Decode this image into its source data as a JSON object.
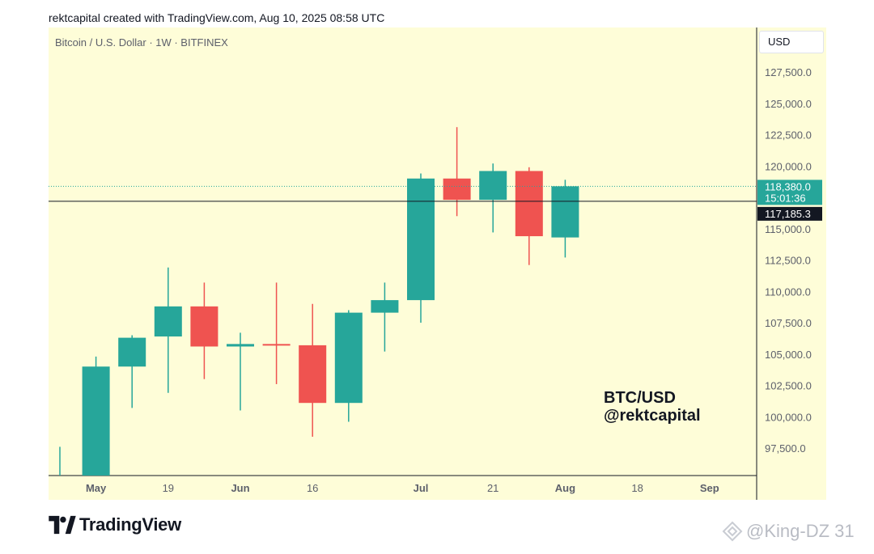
{
  "caption": "rektcapital created with TradingView.com, Aug 10, 2025 08:58 UTC",
  "symbol_line": "Bitcoin / U.S. Dollar · 1W · BITFINEX",
  "currency": "USD",
  "annotation": {
    "line1": "BTC/USD",
    "line2": "@rektcapital"
  },
  "branding": {
    "name": "TradingView"
  },
  "watermark": "@King-DZ 31",
  "colors": {
    "background": "#fefdd8",
    "up": "#26a69a",
    "down": "#ef5350",
    "current_price_bg": "#26a69a",
    "horizontal_line_label_bg": "#131722"
  },
  "chart_data": {
    "type": "candlestick",
    "interval": "1W",
    "ylim": [
      95000,
      130000
    ],
    "y_ticks": [
      97500,
      100000,
      102500,
      105000,
      107500,
      110000,
      112500,
      115000,
      117500,
      120000,
      122500,
      125000,
      127500
    ],
    "y_tick_labels": [
      "97,500.0",
      "100,000.0",
      "102,500.0",
      "105,000.0",
      "107,500.0",
      "",
      "112,500.0",
      "115,000.0",
      "",
      "120,000.0",
      "122,500.0",
      "125,000.0",
      "127,500.0"
    ],
    "y_tick_labels_full": [
      "97,500.0",
      "100,000.0",
      "102,500.0",
      "105,000.0",
      "107,500.0",
      "110,000.0",
      "112,500.0",
      "115,000.0",
      "",
      "120,000.0",
      "122,500.0",
      "125,000.0",
      "127,500.0"
    ],
    "x_labels": [
      {
        "label": "May",
        "bold": true,
        "slot": 1.0
      },
      {
        "label": "19",
        "bold": false,
        "slot": 3.0
      },
      {
        "label": "Jun",
        "bold": true,
        "slot": 5.0
      },
      {
        "label": "16",
        "bold": false,
        "slot": 7.0
      },
      {
        "label": "Jul",
        "bold": true,
        "slot": 10.0
      },
      {
        "label": "21",
        "bold": false,
        "slot": 12.0
      },
      {
        "label": "Aug",
        "bold": true,
        "slot": 14.0
      },
      {
        "label": "18",
        "bold": false,
        "slot": 16.0
      },
      {
        "label": "Sep",
        "bold": true,
        "slot": 18.0
      }
    ],
    "candles": [
      {
        "open": 95000,
        "high": 97600,
        "low": 95000,
        "close": 95000,
        "partial": true
      },
      {
        "open": 95000,
        "high": 104800,
        "low": 95000,
        "close": 104000
      },
      {
        "open": 104000,
        "high": 106500,
        "low": 100700,
        "close": 106300
      },
      {
        "open": 106400,
        "high": 111900,
        "low": 101900,
        "close": 108800
      },
      {
        "open": 108800,
        "high": 110700,
        "low": 103000,
        "close": 105600
      },
      {
        "open": 105600,
        "high": 106700,
        "low": 100500,
        "close": 105800
      },
      {
        "open": 105800,
        "high": 110700,
        "low": 102600,
        "close": 105700
      },
      {
        "open": 105700,
        "high": 109000,
        "low": 98400,
        "close": 101100
      },
      {
        "open": 101100,
        "high": 108500,
        "low": 99600,
        "close": 108300
      },
      {
        "open": 108300,
        "high": 110700,
        "low": 105200,
        "close": 109300
      },
      {
        "open": 109300,
        "high": 119400,
        "low": 107500,
        "close": 119000
      },
      {
        "open": 119000,
        "high": 123100,
        "low": 116000,
        "close": 117300
      },
      {
        "open": 117300,
        "high": 120200,
        "low": 114700,
        "close": 119600
      },
      {
        "open": 119600,
        "high": 119900,
        "low": 112100,
        "close": 114400
      },
      {
        "open": 114300,
        "high": 118900,
        "low": 112700,
        "close": 118380
      }
    ],
    "current_price": {
      "value": 118380,
      "label": "118,380.0",
      "countdown": "15:01:36"
    },
    "horizontal_line": {
      "value": 117185.3,
      "label": "117,185.3"
    }
  }
}
